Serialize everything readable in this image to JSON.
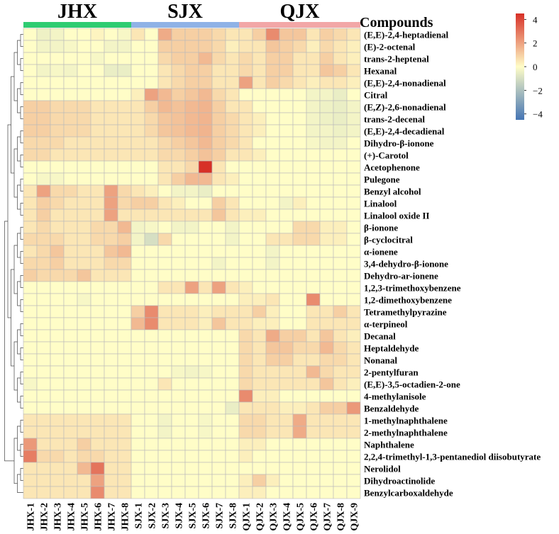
{
  "chart_data": {
    "type": "heatmap",
    "title": "",
    "group_labels": [
      "JHX",
      "SJX",
      "QJX"
    ],
    "group_colors": [
      "#2ecc71",
      "#8fb2e6",
      "#f2a7a7"
    ],
    "group_sizes": [
      8,
      8,
      9
    ],
    "samples": [
      "JHX-1",
      "JHX-2",
      "JHX-3",
      "JHX-4",
      "JHX-5",
      "JHX-6",
      "JHX-7",
      "JHX-8",
      "SJX-1",
      "SJX-2",
      "SJX-3",
      "SJX-4",
      "SJX-5",
      "SJX-6",
      "SJX-7",
      "SJX-8",
      "QJX-1",
      "QJX-2",
      "QJX-3",
      "QJX-4",
      "QJX-5",
      "QJX-6",
      "QJX-7",
      "QJX-8",
      "QJX-9"
    ],
    "compounds_header": "Compounds",
    "compounds": [
      "(E,E)-2,4-heptadienal",
      "(E)-2-octenal",
      "trans-2-heptenal",
      "Hexanal",
      "(E,E)-2,4-nonadienal",
      "Citral",
      "(E,Z)-2,6-nonadienal",
      "trans-2-decenal",
      "(E,E)-2,4-decadienal",
      "Dihydro-β-ionone",
      "(+)-Carotol",
      "Acetophenone",
      "Pulegone",
      "Benzyl alcohol",
      "Linalool",
      "Linalool oxide II",
      "β-ionone",
      "β-cyclocitral",
      "α-ionene",
      "3,4-dehydro-β-ionone",
      "Dehydro-ar-ionene",
      "1,2,3-trimethoxybenzene",
      "1,2-dimethoxybenzene",
      "Tetramethylpyrazine",
      "α-terpineol",
      "Decanal",
      "Heptaldehyde",
      "Nonanal",
      "2-pentylfuran",
      "(E,E)-3,5-octadien-2-one",
      "4-methylanisole",
      "Benzaldehyde",
      "1-methylnaphthalene",
      "2-methylnaphthalene",
      "Naphthalene",
      "2,2,4-trimethyl-1,3-pentanediol diisobutyrate",
      "Nerolidol",
      "Dihydroactinolide",
      "Benzylcarboxaldehyde"
    ],
    "values": [
      [
        0,
        -0.4,
        -0.3,
        0,
        0,
        0.2,
        0,
        -0.2,
        0.5,
        0,
        1.8,
        1,
        1,
        1,
        0.8,
        0.5,
        0.5,
        1,
        2.5,
        1.2,
        1.2,
        0.5,
        1,
        0.8,
        0.5
      ],
      [
        0,
        -0.3,
        -0.3,
        -0.2,
        0,
        0,
        -0.3,
        -0.3,
        0,
        0,
        1,
        1,
        1,
        1,
        0.8,
        0.3,
        0.5,
        0.5,
        1.2,
        1,
        0.8,
        0.3,
        0.8,
        0.5,
        0.3
      ],
      [
        0,
        0,
        0,
        0,
        0,
        -0.2,
        0,
        0,
        0,
        0,
        0.8,
        1,
        1,
        1.5,
        0.8,
        0.5,
        0.8,
        0.5,
        1,
        1,
        0.5,
        0.5,
        1,
        0.5,
        0.3
      ],
      [
        0,
        -0.3,
        -0.2,
        -0.3,
        0,
        0,
        -0.5,
        -0.5,
        0,
        0,
        0.5,
        0.8,
        1,
        1,
        0.5,
        0.5,
        0.8,
        0.5,
        1,
        1,
        0.5,
        0.5,
        1.2,
        1,
        0.5
      ],
      [
        0,
        0,
        0,
        0,
        0,
        0,
        0,
        0,
        0,
        0,
        0.5,
        0.8,
        1,
        1,
        0.5,
        0.5,
        2,
        0.5,
        1,
        0.8,
        0.5,
        0.3,
        0.5,
        0.5,
        0.3
      ],
      [
        0,
        0,
        0,
        0,
        0,
        0,
        0,
        0,
        0.3,
        2,
        1.5,
        1,
        1.2,
        1.5,
        0.8,
        0.5,
        0,
        0,
        0,
        0,
        0,
        -0.3,
        -0.3,
        -0.5,
        0
      ],
      [
        1,
        1,
        0.8,
        0.8,
        0.8,
        0.5,
        0.5,
        0.5,
        0.5,
        1,
        1.5,
        1.3,
        1.5,
        1.6,
        1,
        0.5,
        0.5,
        0,
        0,
        0,
        0,
        -0.3,
        -0.4,
        -0.5,
        -0.3
      ],
      [
        1,
        1,
        0.8,
        0.8,
        0.8,
        0.5,
        0.5,
        0.5,
        0.5,
        0.8,
        1.2,
        1.3,
        1.5,
        1.6,
        1,
        0.8,
        0.5,
        0.3,
        0,
        0,
        0,
        -0.3,
        -0.4,
        -0.5,
        -0.3
      ],
      [
        1,
        1,
        0.8,
        0.8,
        0.8,
        0.5,
        0.5,
        0.5,
        0.5,
        0.8,
        1.2,
        1.3,
        1.5,
        1.6,
        1,
        0.8,
        0.5,
        0.3,
        0,
        0,
        0,
        -0.3,
        -0.3,
        -0.4,
        -0.3
      ],
      [
        0.8,
        0.8,
        0.8,
        0.5,
        0.5,
        0.5,
        0.5,
        0.5,
        0.5,
        0.5,
        0.8,
        1,
        1.2,
        1.5,
        1,
        0.8,
        0.5,
        0,
        0,
        0,
        0,
        -0.2,
        -0.3,
        -0.3,
        0
      ],
      [
        0.8,
        0.8,
        0.5,
        0.5,
        0.5,
        0.5,
        0.5,
        0.5,
        0.5,
        0.5,
        0.8,
        0.8,
        1,
        1.3,
        1,
        0.5,
        0.5,
        0.3,
        0,
        0,
        0,
        0,
        0,
        0,
        0
      ],
      [
        0,
        0,
        0,
        0,
        0,
        0,
        0,
        0,
        0,
        0,
        0.5,
        0.5,
        0.8,
        4.5,
        0.5,
        0,
        0,
        0,
        0,
        0,
        0,
        0,
        0,
        0,
        0
      ],
      [
        0,
        -0.2,
        -0.2,
        0,
        0,
        0,
        0,
        0,
        0,
        0,
        0.5,
        1,
        1.5,
        1.5,
        0.5,
        0.3,
        0,
        0,
        0,
        0,
        0,
        0,
        0,
        0,
        0
      ],
      [
        0.5,
        2,
        0.8,
        0.8,
        0.5,
        0.5,
        2,
        0.8,
        0.5,
        0.3,
        0,
        -0.3,
        -0.3,
        -0.5,
        0,
        0,
        0,
        0,
        0,
        0,
        0,
        0,
        0,
        0,
        0
      ],
      [
        0.5,
        1,
        0.8,
        0.5,
        0.5,
        0.5,
        2,
        0.8,
        1,
        1,
        0.5,
        0.3,
        0,
        0,
        1,
        0.5,
        0,
        0,
        0,
        -0.3,
        0.3,
        0,
        0,
        0,
        0
      ],
      [
        0.5,
        1,
        0.5,
        0.5,
        0.5,
        0.5,
        2,
        0.5,
        0.5,
        0.5,
        0.5,
        0.5,
        0.5,
        0.5,
        1.2,
        0.5,
        0.3,
        0.3,
        0,
        0,
        0,
        0,
        0,
        0,
        0
      ],
      [
        0.5,
        0.8,
        0.5,
        0.5,
        0.5,
        0.8,
        0.8,
        1.5,
        -0.3,
        -0.2,
        0,
        -0.3,
        -0.3,
        0,
        0,
        -0.3,
        0,
        0,
        0,
        0,
        0.8,
        0.8,
        0.3,
        0.3,
        0
      ],
      [
        0.8,
        0.8,
        0.8,
        0.5,
        0.5,
        0.8,
        0.8,
        1,
        -0.3,
        -1,
        0.8,
        0,
        0,
        0,
        0,
        -0.3,
        0,
        0,
        0.5,
        0.5,
        0.8,
        0.8,
        0.3,
        0.3,
        0
      ],
      [
        0.5,
        0.8,
        1.2,
        0.5,
        0.5,
        0.5,
        1.2,
        1.5,
        0,
        0,
        0,
        0,
        0,
        0,
        0,
        0,
        0,
        0,
        -0.3,
        0,
        0,
        0,
        0,
        0,
        0
      ],
      [
        0.8,
        0.8,
        1,
        0.5,
        0.5,
        0.5,
        0.8,
        0.8,
        0,
        0,
        0,
        0,
        0,
        0,
        -0.3,
        0,
        0,
        0,
        -0.3,
        0,
        0,
        0,
        0,
        0,
        0
      ],
      [
        1,
        0.8,
        0.8,
        0.8,
        1.2,
        0.5,
        0.5,
        0.5,
        0,
        0,
        0,
        0,
        0,
        0,
        0,
        0,
        0,
        0,
        0,
        0,
        0,
        0,
        0,
        0,
        0
      ],
      [
        0,
        0,
        0,
        0,
        0,
        0,
        0,
        0,
        0,
        0,
        0.5,
        0.5,
        2,
        0.5,
        2,
        0.5,
        0.3,
        0,
        0,
        0,
        0,
        0,
        0,
        0,
        0
      ],
      [
        0,
        0,
        0,
        0,
        -0.2,
        0,
        0,
        0,
        0,
        0,
        0,
        0,
        0,
        0,
        0,
        0,
        0.3,
        0.3,
        0.5,
        0,
        0,
        2.5,
        0,
        0,
        0
      ],
      [
        0,
        0,
        0,
        0,
        0,
        0,
        0,
        0,
        1,
        2.5,
        0.5,
        0.5,
        0.5,
        0.3,
        0.5,
        0.5,
        0.5,
        1,
        0.3,
        0,
        0,
        0.5,
        0.5,
        1,
        0.5
      ],
      [
        0,
        0,
        0,
        0,
        0,
        0,
        0,
        0,
        1.5,
        2.5,
        0.5,
        0.5,
        0.5,
        0.3,
        1.2,
        0.5,
        0.5,
        0.3,
        0.3,
        0,
        0,
        0.5,
        0.5,
        0.5,
        0.5
      ],
      [
        0,
        0,
        0,
        0,
        0,
        0,
        0,
        0,
        0,
        0,
        0,
        0,
        0,
        0,
        0,
        0,
        0.8,
        0.5,
        1.8,
        1,
        1,
        0.5,
        1.2,
        0.5,
        0.3
      ],
      [
        0,
        0,
        0,
        0,
        0,
        0,
        0,
        0,
        0,
        0,
        0,
        0,
        0,
        0,
        0,
        0,
        0.8,
        0.5,
        1.2,
        1.2,
        0.8,
        0.8,
        1.5,
        0.8,
        0.5
      ],
      [
        0,
        0,
        0,
        0,
        0,
        0,
        0,
        0,
        0,
        0,
        0,
        0,
        0,
        0,
        0,
        0,
        0.8,
        0.5,
        1,
        1,
        0.5,
        0.5,
        0.8,
        0.8,
        0.5
      ],
      [
        0,
        0,
        0,
        0,
        0,
        0,
        0,
        0,
        0,
        0,
        0,
        -0.2,
        -0.3,
        -0.2,
        0,
        0,
        0.8,
        0.5,
        0.5,
        0.5,
        0.5,
        1.5,
        0.8,
        0.5,
        0.5
      ],
      [
        -0.2,
        0,
        0,
        0,
        0,
        0,
        0,
        0,
        0,
        0,
        0.5,
        0,
        0,
        0,
        0,
        0,
        0.8,
        0.5,
        0.5,
        0.5,
        0.5,
        0.5,
        1.2,
        0.5,
        0.3
      ],
      [
        0,
        0,
        0,
        0,
        0,
        0,
        0,
        0,
        0,
        0,
        0,
        0,
        0,
        0,
        0,
        0,
        2.5,
        0.3,
        0.3,
        0,
        0,
        0,
        0,
        0,
        0
      ],
      [
        0,
        0,
        0,
        0,
        0,
        0,
        0,
        0,
        0,
        0,
        0,
        0,
        0,
        0,
        0,
        -0.5,
        0.5,
        0.5,
        0.5,
        0.3,
        0.3,
        0.5,
        1,
        1,
        2.2
      ],
      [
        0.5,
        0.5,
        0.5,
        0.5,
        0.5,
        0.5,
        0.5,
        0.5,
        0,
        0,
        -0.3,
        0,
        0,
        -0.2,
        0,
        0,
        0.8,
        0.8,
        0.5,
        0.5,
        1.8,
        0.5,
        0.5,
        0.5,
        0.5
      ],
      [
        0.5,
        0.5,
        0.5,
        0.5,
        0.5,
        0.5,
        0.5,
        0.5,
        0,
        0,
        -0.3,
        0,
        0,
        -0.2,
        0,
        0,
        0.8,
        0.8,
        0.5,
        0.5,
        1.8,
        0.5,
        0.5,
        0.5,
        0.5
      ],
      [
        2.2,
        0.5,
        0.5,
        0.5,
        1,
        0.5,
        0.5,
        0.5,
        0,
        0,
        0,
        0,
        0,
        0,
        0,
        0,
        0.3,
        0.3,
        0,
        0,
        0,
        0,
        0,
        0,
        0
      ],
      [
        2.8,
        0.8,
        0.8,
        0.5,
        0.8,
        0.8,
        0.5,
        0.5,
        0,
        0,
        0,
        0,
        0,
        0,
        0,
        0,
        0.3,
        0,
        0,
        0,
        0,
        0,
        0,
        0,
        0
      ],
      [
        0.5,
        0.5,
        0.5,
        0.5,
        1.5,
        3,
        0.5,
        0.5,
        0,
        0,
        0,
        0,
        0,
        0,
        0,
        0,
        0,
        0,
        0,
        0,
        0,
        0,
        0,
        0,
        0
      ],
      [
        0.5,
        0.5,
        0.5,
        0.5,
        0.5,
        2,
        0.5,
        0.5,
        0,
        0,
        0,
        0,
        0,
        0,
        0,
        0,
        0.3,
        1,
        0.3,
        0,
        0,
        0,
        0,
        0,
        0
      ],
      [
        0.5,
        0.5,
        0.5,
        0.5,
        0.5,
        2.5,
        0.5,
        0.5,
        0,
        0,
        0,
        0,
        0,
        0,
        0,
        0,
        0.3,
        0.3,
        0,
        0,
        0,
        0,
        0,
        0,
        0
      ]
    ],
    "color_scale": {
      "min": -4.5,
      "max": 4.5,
      "low": "#4575b4",
      "mid": "#fffdc7",
      "high": "#d73027"
    },
    "colorbar_ticks": [
      4,
      2,
      0,
      -2,
      -4
    ],
    "colorbar_tick_labels": [
      "4",
      "2",
      "0",
      "−2",
      "−4"
    ],
    "row_dendrogram": true
  }
}
